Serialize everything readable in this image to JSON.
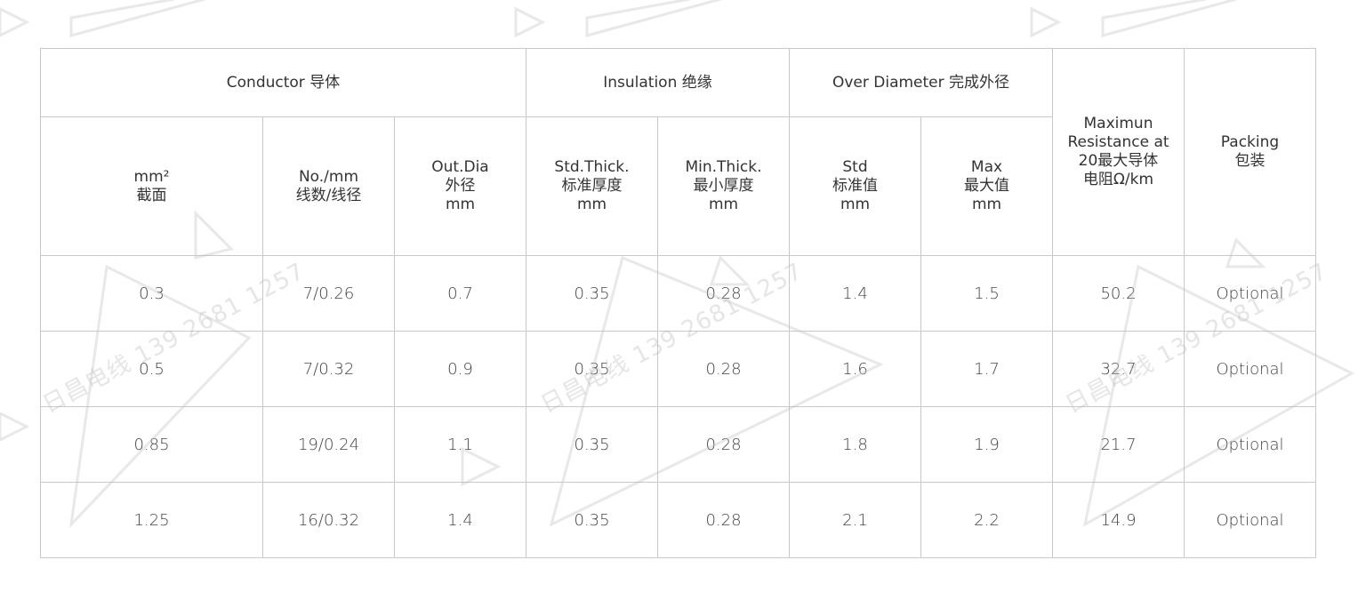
{
  "watermark": {
    "text": "日昌电线 139 2681 1257"
  },
  "table": {
    "groups": {
      "conductor": "Conductor 导体",
      "insulation": "Insulation 绝缘",
      "over_diameter": "Over Diameter 完成外径",
      "resistance": "Maximun\nResistance at\n20最大导体\n电阻Ω/km",
      "packing": "Packing\n包装"
    },
    "columns": [
      "mm²\n截面",
      "No./mm\n线数/线径",
      "Out.Dia\n外径\nmm",
      "Std.Thick.\n标准厚度\nmm",
      "Min.Thick.\n最小厚度\nmm",
      "Std\n标准值\nmm",
      "Max\n最大值\nmm"
    ],
    "rows": [
      [
        "0.3",
        "7/0.26",
        "0.7",
        "0.35",
        "0.28",
        "1.4",
        "1.5",
        "50.2",
        "Optional"
      ],
      [
        "0.5",
        "7/0.32",
        "0.9",
        "0.35",
        "0.28",
        "1.6",
        "1.7",
        "32.7",
        "Optional"
      ],
      [
        "0.85",
        "19/0.24",
        "1.1",
        "0.35",
        "0.28",
        "1.8",
        "1.9",
        "21.7",
        "Optional"
      ],
      [
        "1.25",
        "16/0.32",
        "1.4",
        "0.35",
        "0.28",
        "2.1",
        "2.2",
        "14.9",
        "Optional"
      ]
    ]
  }
}
